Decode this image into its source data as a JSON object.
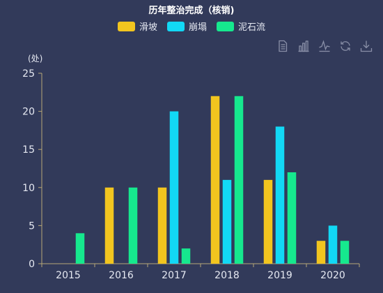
{
  "chart_data": {
    "type": "bar",
    "title": "历年整治完成（核销)",
    "ylabel": "(处)",
    "categories": [
      "2015",
      "2016",
      "2017",
      "2018",
      "2019",
      "2020"
    ],
    "ylim": [
      0,
      25
    ],
    "yticks": [
      0,
      5,
      10,
      15,
      20,
      25
    ],
    "legend_position": "top-center",
    "grid": false,
    "series": [
      {
        "name": "滑坡",
        "color": "#f2c51f",
        "values": [
          0,
          10,
          10,
          22,
          11,
          3
        ]
      },
      {
        "name": "崩塌",
        "color": "#12d8f5",
        "values": [
          0,
          0,
          20,
          11,
          18,
          5
        ]
      },
      {
        "name": "泥石流",
        "color": "#16e88e",
        "values": [
          4,
          10,
          2,
          22,
          12,
          3
        ]
      }
    ]
  },
  "toolbox": {
    "icons": [
      "data-view-icon",
      "bar-chart-icon",
      "line-chart-icon",
      "restore-icon",
      "download-icon"
    ]
  },
  "colors": {
    "background": "#323a5a",
    "axis": "#b8a878",
    "text": "#e6e9f2",
    "icon": "#8a90a8"
  }
}
